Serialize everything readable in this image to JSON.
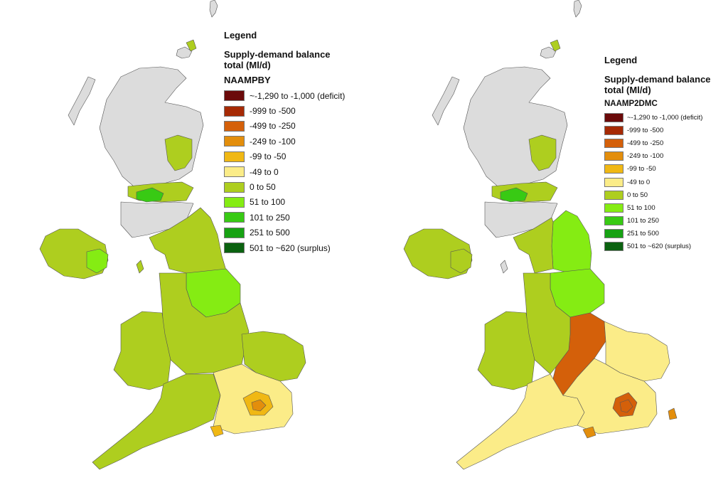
{
  "colors": {
    "deficit_1290_1000": "#6b0a0a",
    "deficit_999_500": "#a62a05",
    "deficit_499_250": "#d4600a",
    "deficit_249_100": "#e38e0c",
    "deficit_99_50": "#f0b814",
    "deficit_49_0": "#fbec88",
    "surplus_0_50": "#aece1f",
    "surplus_51_100": "#85ec13",
    "surplus_101_250": "#38ca14",
    "surplus_251_500": "#17a213",
    "surplus_501_620": "#0b6210",
    "scotland_no_data": "#dcdcdc",
    "boundary": "#555555"
  },
  "legend_left": {
    "title": "Legend",
    "subtitle": "Supply-demand balance total (Ml/d)",
    "scenario": "NAAMPBY",
    "items": [
      {
        "label": "~-1,290 to -1,000 (deficit)",
        "color_key": "deficit_1290_1000"
      },
      {
        "label": "-999 to -500",
        "color_key": "deficit_999_500"
      },
      {
        "label": "-499 to -250",
        "color_key": "deficit_499_250"
      },
      {
        "label": "-249 to -100",
        "color_key": "deficit_249_100"
      },
      {
        "label": "-99 to -50",
        "color_key": "deficit_99_50"
      },
      {
        "label": "-49 to 0",
        "color_key": "deficit_49_0"
      },
      {
        "label": "0 to 50",
        "color_key": "surplus_0_50"
      },
      {
        "label": "51 to 100",
        "color_key": "surplus_51_100"
      },
      {
        "label": "101 to 250",
        "color_key": "surplus_101_250"
      },
      {
        "label": "251 to 500",
        "color_key": "surplus_251_500"
      },
      {
        "label": "501 to ~620 (surplus)",
        "color_key": "surplus_501_620"
      }
    ]
  },
  "legend_right": {
    "title": "Legend",
    "subtitle": "Supply-demand balance total (Ml/d)",
    "scenario": "NAAMP2DMC",
    "items": [
      {
        "label": "~-1,290 to -1,000 (deficit)",
        "color_key": "deficit_1290_1000"
      },
      {
        "label": "-999 to -500",
        "color_key": "deficit_999_500"
      },
      {
        "label": "-499 to -250",
        "color_key": "deficit_499_250"
      },
      {
        "label": "-249 to -100",
        "color_key": "deficit_249_100"
      },
      {
        "label": "-99 to -50",
        "color_key": "deficit_99_50"
      },
      {
        "label": "-49 to 0",
        "color_key": "deficit_49_0"
      },
      {
        "label": "0 to 50",
        "color_key": "surplus_0_50"
      },
      {
        "label": "51 to 100",
        "color_key": "surplus_51_100"
      },
      {
        "label": "101 to 250",
        "color_key": "surplus_101_250"
      },
      {
        "label": "251 to 500",
        "color_key": "surplus_251_500"
      },
      {
        "label": "501 to ~620 (surplus)",
        "color_key": "surplus_501_620"
      }
    ]
  },
  "maps": {
    "left": {
      "scenario": "NAAMPBY",
      "regions": {
        "scotland_highlands": "scotland_no_data",
        "scotland_central_belt": "surplus_0_50",
        "scotland_forth_valley": "surplus_101_250",
        "scotland_south": "scotland_no_data",
        "northern_ireland": "surplus_0_50",
        "northern_ireland_east": "surplus_51_100",
        "north_england": "surplus_0_50",
        "yorkshire": "surplus_51_100",
        "midlands": "surplus_0_50",
        "wales": "surplus_0_50",
        "east_anglia": "surplus_0_50",
        "south_west": "surplus_0_50",
        "south_east": "deficit_49_0",
        "london": "deficit_99_50",
        "london_core": "deficit_249_100",
        "hampshire_coast": "deficit_99_50"
      }
    },
    "right": {
      "scenario": "NAAMP2DMC",
      "regions": {
        "scotland_highlands": "scotland_no_data",
        "scotland_central_belt": "surplus_0_50",
        "scotland_forth_valley": "surplus_101_250",
        "scotland_south": "scotland_no_data",
        "northern_ireland": "surplus_0_50",
        "northern_ireland_east": "surplus_0_50",
        "north_england": "surplus_51_100",
        "yorkshire": "surplus_51_100",
        "midlands": "deficit_499_250",
        "wales": "surplus_0_50",
        "east_anglia": "deficit_49_0",
        "south_west": "deficit_49_0",
        "south_east": "deficit_49_0",
        "london": "deficit_499_250",
        "london_core": "deficit_499_250",
        "hampshire_coast": "deficit_249_100"
      }
    }
  }
}
